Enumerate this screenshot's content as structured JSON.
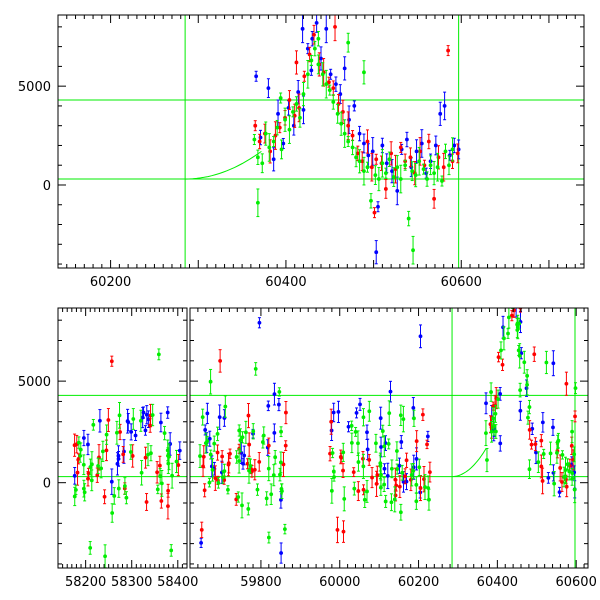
{
  "chart_data": [
    {
      "type": "scatter",
      "title": "",
      "xlabel": "",
      "ylabel": "",
      "xlim": [
        60140,
        60740
      ],
      "ylim": [
        -4200,
        8600
      ],
      "x_ticks": [
        60200,
        60400,
        60600
      ],
      "y_ticks": [
        0,
        5000
      ],
      "grid": false,
      "reference_lines": {
        "horizontal": [
          4300,
          300
        ],
        "vertical": [
          60285,
          60597
        ],
        "curve": {
          "x_start": 60285,
          "x_end": 60372,
          "y_start": 300,
          "y_end": 1700
        }
      },
      "series": [
        {
          "color": "#0000ff",
          "points": [
            [
              60366,
              5500
            ],
            [
              60371,
              2400
            ],
            [
              60380,
              4900
            ],
            [
              60386,
              1300
            ],
            [
              60391,
              3600
            ],
            [
              60397,
              2100
            ],
            [
              60403,
              3900
            ],
            [
              60409,
              3000
            ],
            [
              60414,
              4700
            ],
            [
              60420,
              3800
            ],
            [
              60425,
              6900
            ],
            [
              60430,
              7400
            ],
            [
              60435,
              8200
            ],
            [
              60440,
              6400
            ],
            [
              60446,
              7900
            ],
            [
              60451,
              5600
            ],
            [
              60457,
              5100
            ],
            [
              60462,
              4600
            ],
            [
              60467,
              5900
            ],
            [
              60472,
              3300
            ],
            [
              60478,
              4000
            ],
            [
              60484,
              2600
            ],
            [
              60489,
              2100
            ],
            [
              60494,
              1500
            ],
            [
              60499,
              1700
            ],
            [
              60505,
              -1100
            ],
            [
              60510,
              2000
            ],
            [
              60515,
              1100
            ],
            [
              60521,
              700
            ],
            [
              60527,
              -300
            ],
            [
              60532,
              1800
            ],
            [
              60538,
              2300
            ],
            [
              60543,
              900
            ],
            [
              60549,
              1700
            ],
            [
              60555,
              2100
            ],
            [
              60560,
              600
            ],
            [
              60565,
              1200
            ],
            [
              60571,
              2000
            ],
            [
              60576,
              3600
            ],
            [
              60581,
              4000
            ],
            [
              60587,
              1500
            ],
            [
              60592,
              2000
            ],
            [
              60597,
              1800
            ],
            [
              60503,
              -3400
            ],
            [
              60419,
              7900
            ],
            [
              60429,
              5800
            ]
          ]
        },
        {
          "color": "#ff0000",
          "points": [
            [
              60365,
              3000
            ],
            [
              60370,
              2200
            ],
            [
              60376,
              2600
            ],
            [
              60382,
              1700
            ],
            [
              60388,
              2500
            ],
            [
              60393,
              2900
            ],
            [
              60399,
              3400
            ],
            [
              60404,
              4300
            ],
            [
              60410,
              3500
            ],
            [
              60415,
              3900
            ],
            [
              60421,
              5500
            ],
            [
              60427,
              6600
            ],
            [
              60432,
              7600
            ],
            [
              60438,
              6100
            ],
            [
              60443,
              5700
            ],
            [
              60449,
              5200
            ],
            [
              60454,
              4900
            ],
            [
              60460,
              4100
            ],
            [
              60465,
              3700
            ],
            [
              60471,
              3000
            ],
            [
              60476,
              2500
            ],
            [
              60482,
              1600
            ],
            [
              60487,
              1200
            ],
            [
              60493,
              2200
            ],
            [
              60498,
              900
            ],
            [
              60503,
              1300
            ],
            [
              60509,
              1100
            ],
            [
              60514,
              -200
            ],
            [
              60520,
              1600
            ],
            [
              60525,
              800
            ],
            [
              60531,
              1900
            ],
            [
              60536,
              1200
            ],
            [
              60542,
              1400
            ],
            [
              60547,
              600
            ],
            [
              60553,
              1700
            ],
            [
              60558,
              1000
            ],
            [
              60563,
              2200
            ],
            [
              60569,
              -700
            ],
            [
              60574,
              1400
            ],
            [
              60580,
              900
            ],
            [
              60585,
              6800
            ],
            [
              60590,
              1200
            ],
            [
              60596,
              1600
            ],
            [
              60412,
              6200
            ],
            [
              60456,
              8000
            ],
            [
              60501,
              -1400
            ]
          ]
        },
        {
          "color": "#00ee00",
          "points": [
            [
              60364,
              2300
            ],
            [
              60368,
              1400
            ],
            [
              60373,
              1100
            ],
            [
              60377,
              2600
            ],
            [
              60381,
              1900
            ],
            [
              60386,
              2200
            ],
            [
              60390,
              2900
            ],
            [
              60395,
              1800
            ],
            [
              60399,
              3300
            ],
            [
              60404,
              2800
            ],
            [
              60408,
              3700
            ],
            [
              60412,
              4100
            ],
            [
              60416,
              3400
            ],
            [
              60420,
              4600
            ],
            [
              60425,
              5600
            ],
            [
              60429,
              6300
            ],
            [
              60433,
              6900
            ],
            [
              60437,
              6100
            ],
            [
              60442,
              5600
            ],
            [
              60446,
              5100
            ],
            [
              60450,
              4800
            ],
            [
              60454,
              4200
            ],
            [
              60459,
              3600
            ],
            [
              60463,
              3100
            ],
            [
              60467,
              2600
            ],
            [
              60471,
              2200
            ],
            [
              60476,
              1900
            ],
            [
              60480,
              1400
            ],
            [
              60484,
              1200
            ],
            [
              60489,
              700
            ],
            [
              60493,
              900
            ],
            [
              60497,
              -800
            ],
            [
              60502,
              500
            ],
            [
              60506,
              300
            ],
            [
              60510,
              1100
            ],
            [
              60514,
              600
            ],
            [
              60518,
              1300
            ],
            [
              60523,
              400
            ],
            [
              60527,
              900
            ],
            [
              60531,
              300
            ],
            [
              60536,
              1000
            ],
            [
              60540,
              -1700
            ],
            [
              60544,
              700
            ],
            [
              60548,
              500
            ],
            [
              60552,
              1200
            ],
            [
              60557,
              800
            ],
            [
              60561,
              300
            ],
            [
              60565,
              1000
            ],
            [
              60569,
              600
            ],
            [
              60573,
              900
            ],
            [
              60578,
              200
            ],
            [
              60582,
              1700
            ],
            [
              60586,
              1000
            ],
            [
              60590,
              1800
            ],
            [
              60368,
              -900
            ],
            [
              60394,
              4400
            ],
            [
              60437,
              7400
            ],
            [
              60471,
              7200
            ],
            [
              60489,
              5700
            ],
            [
              60545,
              -3300
            ]
          ]
        }
      ]
    },
    {
      "type": "scatter",
      "title": "",
      "xlabel": "",
      "ylabel": "",
      "ylim": [
        -4200,
        8600
      ],
      "y_ticks": [
        0,
        5000
      ],
      "grid": false,
      "panels": [
        {
          "xlim": [
            58140,
            58420
          ],
          "x_ticks": [
            58200,
            58300,
            58400
          ]
        },
        {
          "xlim": [
            59620,
            60630
          ],
          "x_ticks": [
            59800,
            60000,
            60200,
            60400,
            60600
          ]
        }
      ],
      "reference_lines": {
        "horizontal": [
          4300,
          300
        ],
        "vertical": [
          60285,
          60597
        ],
        "curve": {
          "x_start": 60285,
          "x_end": 60372,
          "y_start": 300,
          "y_end": 1700
        }
      },
      "seasons": [
        {
          "x_range": [
            58175,
            58405
          ],
          "blue": 22,
          "red": 26,
          "green": 44
        },
        {
          "x_range": [
            59645,
            59870
          ],
          "blue": 22,
          "red": 26,
          "green": 44
        },
        {
          "x_range": [
            59975,
            60230
          ],
          "blue": 24,
          "red": 28,
          "green": 46
        },
        {
          "x_range": [
            60365,
            60600
          ],
          "blue": 24,
          "red": 28,
          "green": 48
        }
      ],
      "series": [
        {
          "color": "#0000ff"
        },
        {
          "color": "#ff0000"
        },
        {
          "color": "#00ee00"
        }
      ]
    }
  ],
  "colors": {
    "blue": "#0000ff",
    "red": "#ff0000",
    "green": "#00ee00",
    "reference": "#00ee00",
    "axes": "#000000"
  }
}
